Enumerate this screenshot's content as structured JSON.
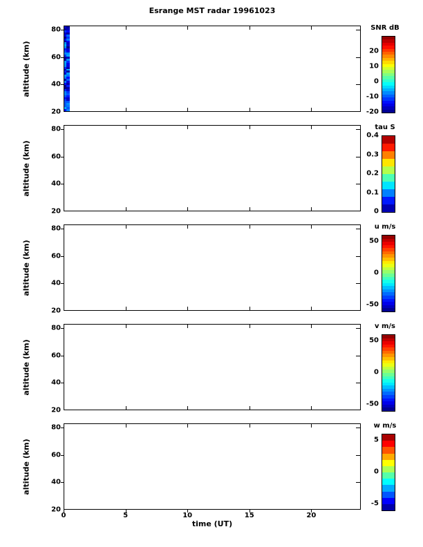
{
  "chart_data": {
    "type": "heatmap",
    "title": "Esrange MST radar 19961023",
    "xlabel": "time (UT)",
    "ylabel": "altitude (km)",
    "x_range": [
      0,
      24
    ],
    "x_ticks": [
      0,
      5,
      10,
      15,
      20
    ],
    "y_range": [
      20,
      83
    ],
    "y_ticks": [
      20,
      40,
      60,
      80
    ],
    "grid": false,
    "layout_note": "five vertically stacked panels sharing the time axis; only the bottom panel shows x tick labels; each panel has its own jet colorbar on the right",
    "panels": [
      {
        "name": "snr",
        "colorbar_title": "SNR dB",
        "colorbar_range": [
          -20,
          30
        ],
        "colorbar_ticks": [
          20,
          10,
          0,
          -10,
          -20
        ],
        "colorbar_segments": 25,
        "data_blocks": [
          {
            "time_start": 0,
            "time_end": 0.45,
            "alt_start": 20,
            "alt_end": 83,
            "value_min_db": -20,
            "value_max_db": -5,
            "description": "mottled dark-blue column of low SNR echoes at the start of the day; rest of panel has no data"
          }
        ]
      },
      {
        "name": "tau",
        "colorbar_title": "tau S",
        "colorbar_range": [
          0,
          0.4
        ],
        "colorbar_ticks": [
          0.4,
          0.3,
          0.2,
          0.1,
          0
        ],
        "colorbar_segments": 10,
        "data_blocks": []
      },
      {
        "name": "u",
        "colorbar_title": "u m/s",
        "colorbar_range": [
          -60,
          60
        ],
        "colorbar_ticks": [
          50,
          0,
          -50
        ],
        "colorbar_segments": 24,
        "data_blocks": []
      },
      {
        "name": "v",
        "colorbar_title": "v m/s",
        "colorbar_range": [
          -60,
          60
        ],
        "colorbar_ticks": [
          50,
          0,
          -50
        ],
        "colorbar_segments": 24,
        "data_blocks": []
      },
      {
        "name": "w",
        "colorbar_title": "w m/s",
        "colorbar_range": [
          -6,
          6
        ],
        "colorbar_ticks": [
          5,
          0,
          -5
        ],
        "colorbar_segments": 12,
        "data_blocks": []
      }
    ],
    "colors": {
      "axis": "#000000",
      "background": "#ffffff",
      "colormap": "jet"
    }
  }
}
